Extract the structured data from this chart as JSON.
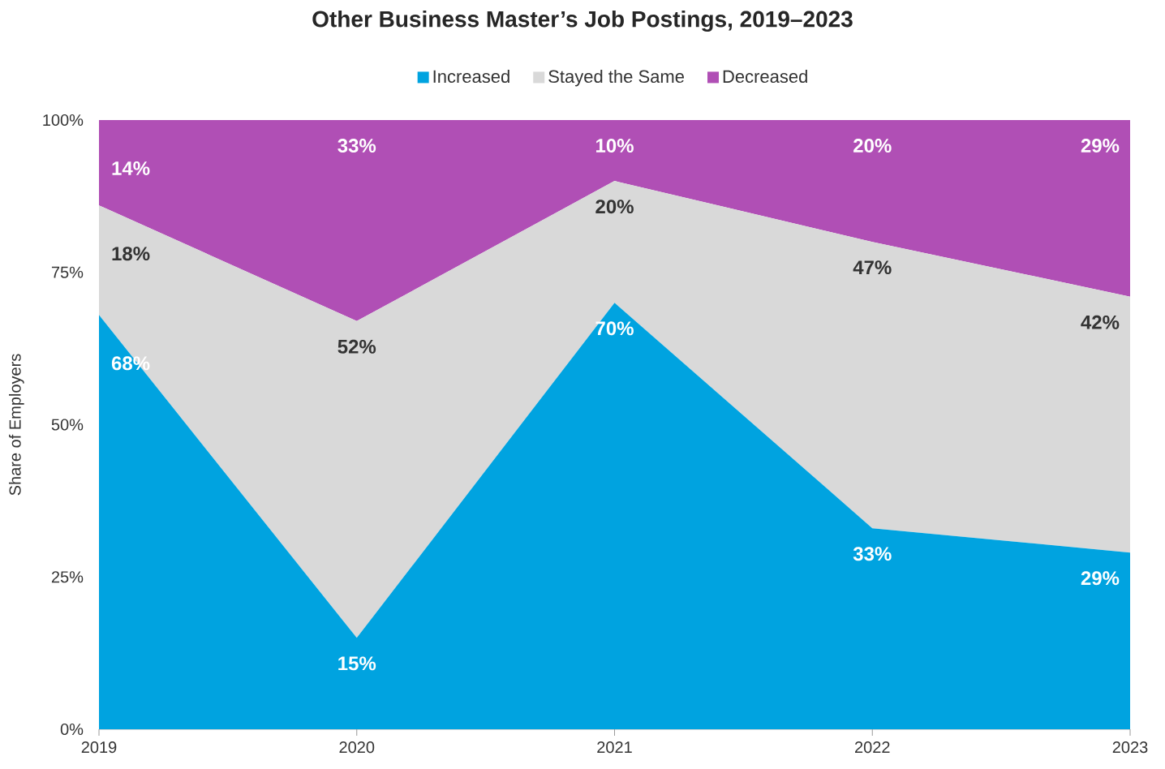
{
  "chart_data": {
    "type": "area",
    "stacked": true,
    "title": "Other Business Master’s Job Postings, 2019–2023",
    "ylabel": "Share of Employers",
    "categories": [
      "2019",
      "2020",
      "2021",
      "2022",
      "2023"
    ],
    "series": [
      {
        "name": "Increased",
        "color": "#00a3e0",
        "values": [
          68,
          15,
          70,
          33,
          29
        ],
        "value_labels": [
          "68%",
          "15%",
          "70%",
          "33%",
          "29%"
        ]
      },
      {
        "name": "Stayed the Same",
        "color": "#d9d9d9",
        "values": [
          18,
          52,
          20,
          47,
          42
        ],
        "value_labels": [
          "18%",
          "52%",
          "20%",
          "47%",
          "42%"
        ]
      },
      {
        "name": "Decreased",
        "color": "#b04fb5",
        "values": [
          14,
          33,
          10,
          20,
          29
        ],
        "value_labels": [
          "14%",
          "33%",
          "10%",
          "20%",
          "29%"
        ]
      }
    ],
    "ylim": [
      0,
      100
    ],
    "yticks": [
      {
        "value": 0,
        "label": "0%"
      },
      {
        "value": 25,
        "label": "25%"
      },
      {
        "value": 50,
        "label": "50%"
      },
      {
        "value": 75,
        "label": "75%"
      },
      {
        "value": 100,
        "label": "100%"
      }
    ],
    "legend": "top",
    "grid": false
  }
}
